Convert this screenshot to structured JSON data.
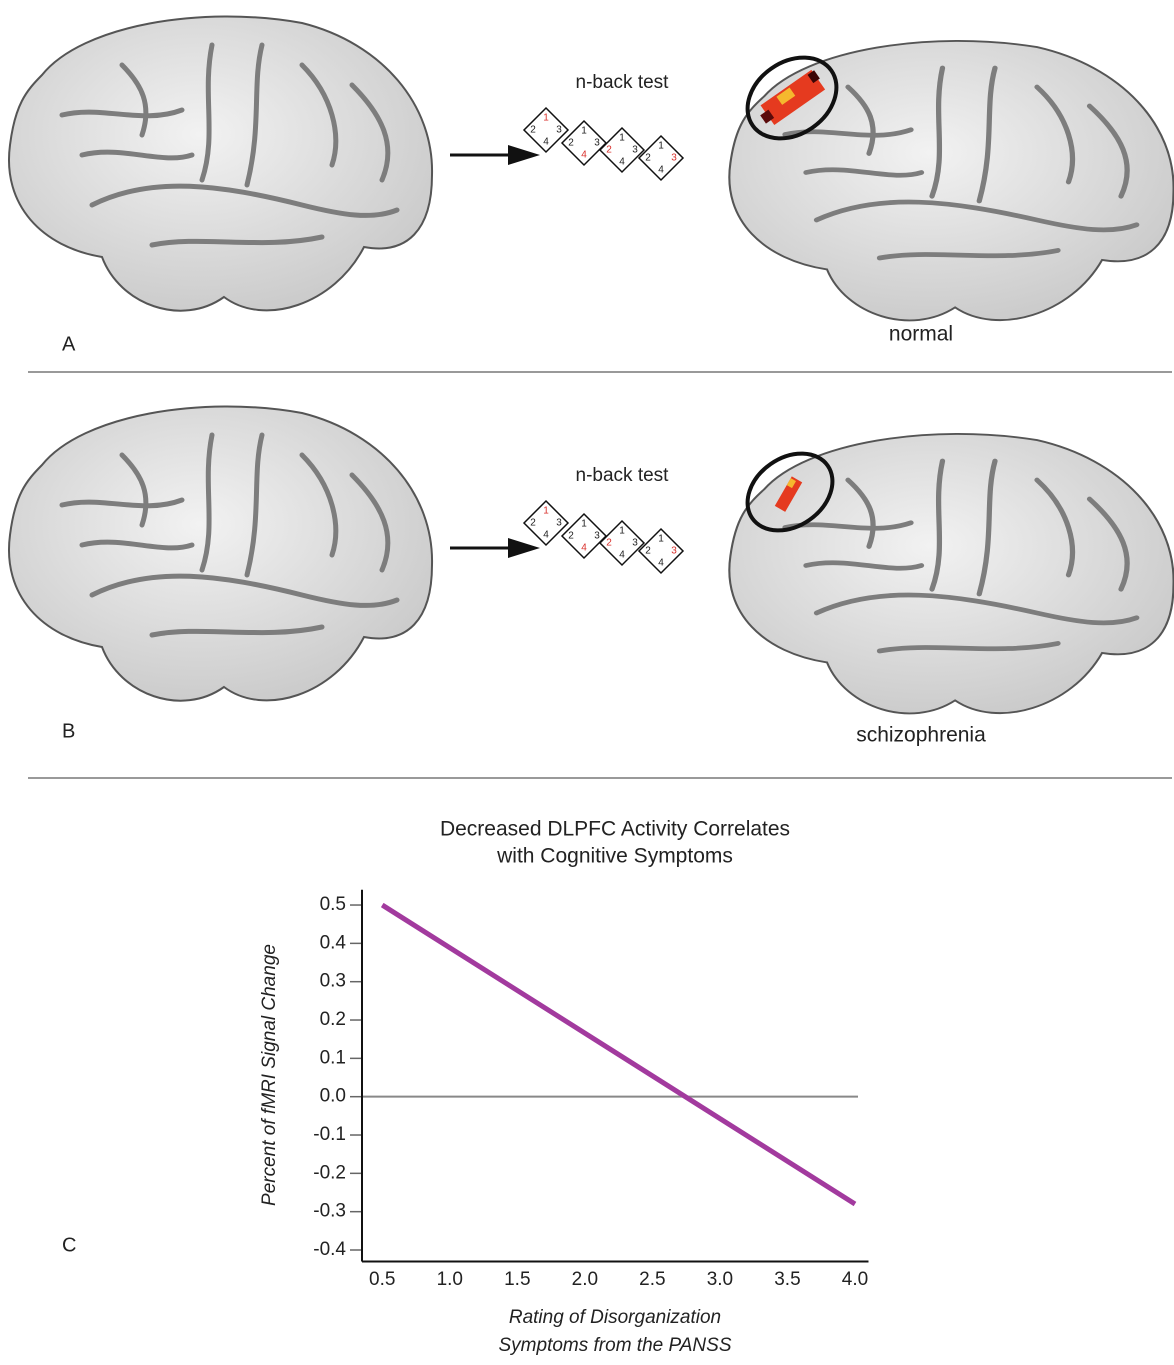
{
  "panels": [
    {
      "letter": "A",
      "task": "n-back test",
      "condition": "normal",
      "diamonds": [
        {
          "labels": [
            "1",
            "2",
            "3",
            "4"
          ],
          "colors": [
            "#d9302c",
            "#222222",
            "#222222",
            "#222222"
          ]
        },
        {
          "labels": [
            "1",
            "2",
            "3",
            "4"
          ],
          "colors": [
            "#222222",
            "#222222",
            "#222222",
            "#d9302c"
          ]
        },
        {
          "labels": [
            "1",
            "2",
            "3",
            "4"
          ],
          "colors": [
            "#222222",
            "#d9302c",
            "#222222",
            "#222222"
          ]
        },
        {
          "labels": [
            "1",
            "2",
            "3",
            "4"
          ],
          "colors": [
            "#222222",
            "#222222",
            "#d9302c",
            "#222222"
          ]
        }
      ]
    },
    {
      "letter": "B",
      "task": "n-back test",
      "condition": "schizophrenia",
      "diamonds": [
        {
          "labels": [
            "1",
            "2",
            "3",
            "4"
          ],
          "colors": [
            "#d9302c",
            "#222222",
            "#222222",
            "#222222"
          ]
        },
        {
          "labels": [
            "1",
            "2",
            "3",
            "4"
          ],
          "colors": [
            "#222222",
            "#222222",
            "#222222",
            "#d9302c"
          ]
        },
        {
          "labels": [
            "1",
            "2",
            "3",
            "4"
          ],
          "colors": [
            "#222222",
            "#d9302c",
            "#222222",
            "#222222"
          ]
        },
        {
          "labels": [
            "1",
            "2",
            "3",
            "4"
          ],
          "colors": [
            "#222222",
            "#222222",
            "#d9302c",
            "#222222"
          ]
        }
      ]
    }
  ],
  "panel_c": {
    "letter": "C"
  },
  "chart_data": {
    "type": "line",
    "title": [
      "Decreased DLPFC Activity Correlates",
      "with Cognitive Symptoms"
    ],
    "ylabel": "Percent of fMRI Signal Change",
    "xlabel": [
      "Rating of Disorganization",
      "Symptoms from the PANSS"
    ],
    "x": [
      0.5,
      4.0
    ],
    "values": [
      0.5,
      -0.28
    ],
    "color": "#a23a9e",
    "xlim": [
      0.35,
      4.1
    ],
    "ylim": [
      -0.43,
      0.54
    ],
    "xticks": [
      0.5,
      {
        "value": 1,
        "label": "1.0"
      },
      1.5,
      {
        "value": 2,
        "label": "2.0"
      },
      2.5,
      {
        "value": 3,
        "label": "3.0"
      },
      3.5,
      {
        "value": 4,
        "label": "4.0"
      }
    ],
    "yticks": [
      0.5,
      0.4,
      0.3,
      0.2,
      0.1,
      {
        "value": 0,
        "label": "0.0"
      },
      -0.1,
      -0.2,
      -0.3,
      -0.4
    ],
    "zero_line": true
  }
}
